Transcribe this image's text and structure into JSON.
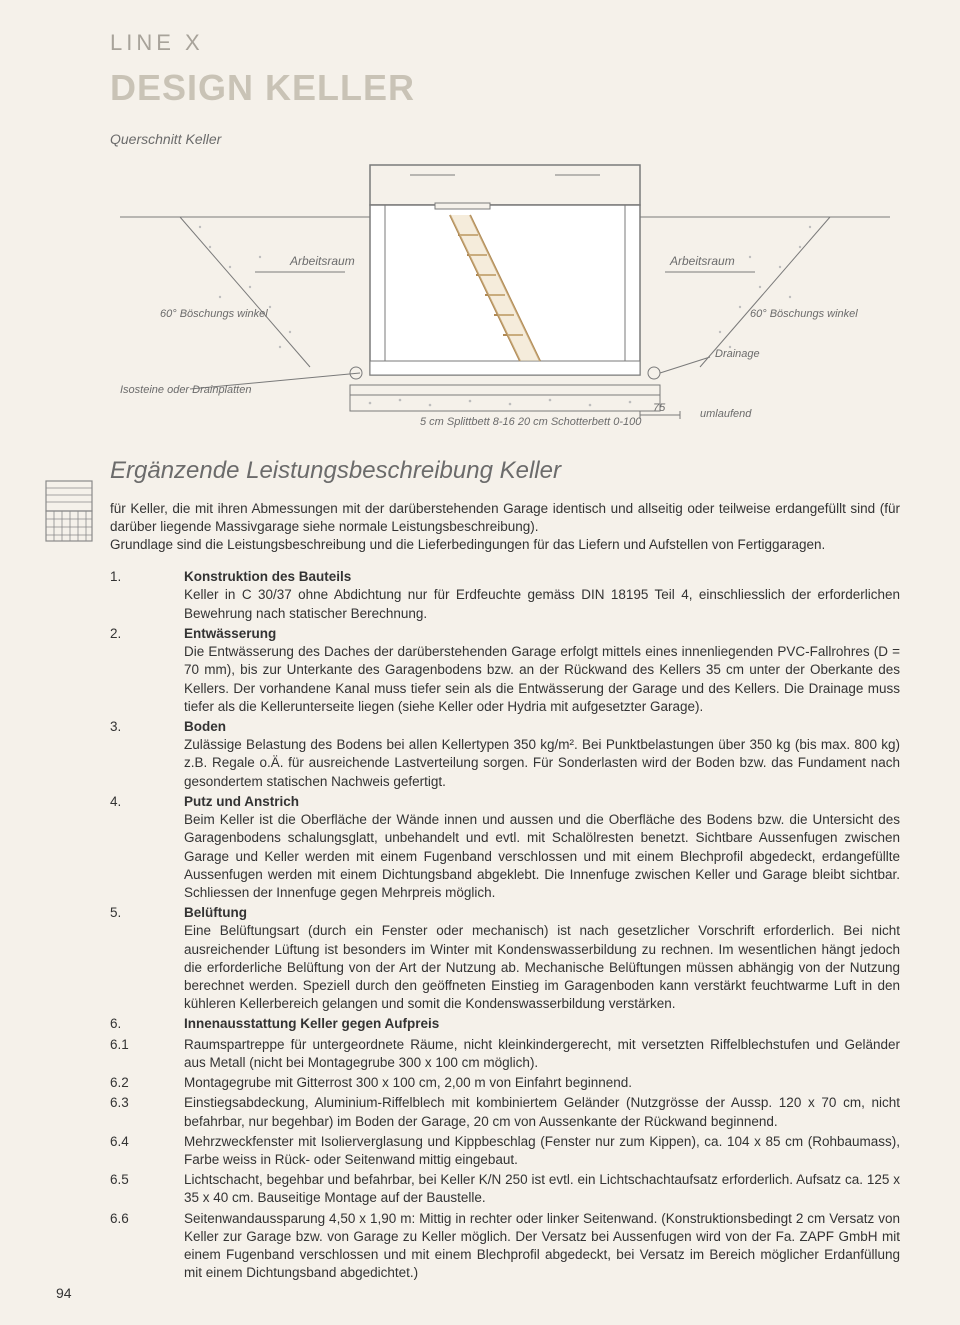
{
  "header": {
    "line": "LINE X",
    "title": "DESIGN KELLER"
  },
  "diagram": {
    "caption": "Querschnitt Keller",
    "labels": {
      "arbeitsraum_l": "Arbeitsraum",
      "arbeitsraum_r": "Arbeitsraum",
      "boeschung_l": "60°\nBöschungs\nwinkel",
      "boeschung_r": "60°\nBöschungs\nwinkel",
      "drainage": "Drainage",
      "isosteine": "Isosteine\noder\nDrainplatten",
      "splitt": "5 cm Splittbett 8-16\n20 cm Schotterbett 0-100",
      "dim75": "75",
      "umlaufend": "umlaufend"
    },
    "colors": {
      "line": "#7a7a7a",
      "ladder": "#d9b98a",
      "fill_soil": "#ececec",
      "text": "#6b6b6b"
    }
  },
  "section_title": "Ergänzende Leistungsbeschreibung Keller",
  "intro": "für Keller, die mit ihren Abmessungen mit der darüberstehenden Garage identisch und allseitig oder teilweise erdangefüllt sind (für darüber liegende Massivgarage siehe normale Leistungsbeschreibung).\nGrundlage sind die Leistungsbeschreibung und die Lieferbedingungen für das Liefern und Aufstellen von Fertiggaragen.",
  "items": [
    {
      "num": "1.",
      "heading": "Konstruktion des Bauteils",
      "body": "Keller in C 30/37 ohne Abdichtung nur für Erdfeuchte gemäss DIN 18195 Teil 4, einschliesslich der erforderlichen Bewehrung nach statischer Berechnung."
    },
    {
      "num": "2.",
      "heading": "Entwässerung",
      "body": "Die Entwässerung des Daches der darüberstehenden Garage erfolgt mittels eines innenliegenden PVC-Fallrohres (D = 70 mm), bis zur Unterkante des Garagenbodens bzw. an der Rückwand des Kellers 35 cm unter der Oberkante des Kellers. Der vorhandene Kanal muss tiefer sein als die Entwässerung der Garage und des Kellers. Die Drainage muss tiefer als die Kellerunterseite liegen (siehe Keller oder Hydria mit aufgesetzter Garage)."
    },
    {
      "num": "3.",
      "heading": "Boden",
      "body": "Zulässige Belastung des Bodens bei allen Kellertypen 350 kg/m². Bei Punktbelastungen über 350 kg (bis max. 800 kg) z.B. Regale o.Ä. für ausreichende Lastverteilung sorgen. Für Sonderlasten wird der Boden bzw. das Fundament nach gesondertem statischen Nachweis gefertigt."
    },
    {
      "num": "4.",
      "heading": "Putz und Anstrich",
      "body": "Beim Keller ist die Oberfläche der Wände innen und aussen und die Oberfläche des Bodens bzw. die Untersicht des Garagenbodens schalungsglatt, unbehandelt und evtl. mit Schalölresten benetzt. Sichtbare Aussenfugen zwischen Garage und Keller werden mit einem Fugenband verschlossen und mit einem Blechprofil abgedeckt, erdangefüllte Aussenfugen werden mit einem Dichtungsband abgeklebt. Die Innenfuge zwischen Keller und Garage bleibt sichtbar. Schliessen der Innenfuge gegen Mehrpreis möglich."
    },
    {
      "num": "5.",
      "heading": "Belüftung",
      "body": "Eine Belüftungsart (durch ein Fenster oder mechanisch) ist nach gesetzlicher Vorschrift erforderlich. Bei nicht ausreichender Lüftung ist besonders im Winter mit Kondenswasserbildung zu rechnen. Im wesentlichen hängt jedoch die erforderliche Belüftung von der Art der Nutzung ab. Mechanische Belüftungen müssen abhängig von der Nutzung berechnet werden. Speziell durch den geöffneten Einstieg im Garagenboden kann verstärkt feuchtwarme Luft in den kühleren Kellerbereich gelangen und somit die Kondenswasserbildung verstärken."
    },
    {
      "num": "6.",
      "heading": "Innenausstattung Keller gegen Aufpreis",
      "body": ""
    },
    {
      "num": "6.1",
      "heading": "",
      "body": "Raumspartreppe für untergeordnete Räume, nicht kleinkindergerecht, mit versetzten Riffelblechstufen und Geländer aus Metall (nicht bei Montagegrube 300 x 100 cm möglich)."
    },
    {
      "num": "6.2",
      "heading": "",
      "body": "Montagegrube mit Gitterrost 300 x 100 cm, 2,00 m von Einfahrt beginnend."
    },
    {
      "num": "6.3",
      "heading": "",
      "body": "Einstiegsabdeckung, Aluminium-Riffelblech mit kombiniertem Geländer (Nutzgrösse der Aussp. 120 x 70 cm, nicht befahrbar, nur begehbar) im Boden der Garage, 20 cm von Aussenkante der Rückwand beginnend."
    },
    {
      "num": "6.4",
      "heading": "",
      "body": "Mehrzweckfenster mit Isolierverglasung und Kippbeschlag (Fenster nur zum Kippen), ca. 104 x 85 cm (Rohbaumass), Farbe weiss in Rück- oder Seitenwand mittig eingebaut."
    },
    {
      "num": "6.5",
      "heading": "",
      "body": "Lichtschacht, begehbar und befahrbar, bei Keller K/N 250 ist evtl. ein Lichtschachtaufsatz erforderlich. Aufsatz ca. 125 x 35 x 40 cm. Bauseitige Montage auf der Baustelle."
    },
    {
      "num": "6.6",
      "heading": "",
      "body": "Seitenwandaussparung 4,50 x 1,90 m: Mittig in rechter oder linker Seitenwand. (Konstruktionsbedingt 2 cm Versatz von Keller zur Garage bzw. von Garage zu Keller möglich. Der Versatz bei Aussenfugen wird von der Fa. ZAPF GmbH mit einem Fugenband verschlossen und mit einem Blechprofil abgedeckt, bei Versatz im Bereich möglicher Erdanfüllung mit einem Dichtungsband abgedichtet.)"
    }
  ],
  "page_number": "94"
}
